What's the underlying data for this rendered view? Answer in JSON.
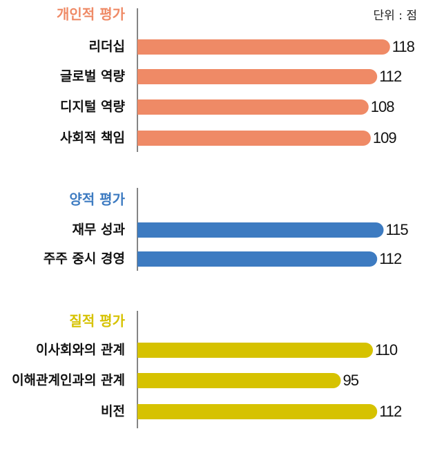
{
  "unit_label": "단위 : 점",
  "colors": {
    "personal": "#ef8a66",
    "quantitative": "#3d7bc1",
    "qualitative": "#d6c200",
    "text": "#111111",
    "axis": "#333333"
  },
  "chart_data": [
    {
      "type": "bar",
      "orientation": "horizontal",
      "title": "개인적 평가",
      "color": "#ef8a66",
      "categories": [
        "리더십",
        "글로벌 역량",
        "디지털 역량",
        "사회적 책임"
      ],
      "values": [
        118,
        112,
        108,
        109
      ]
    },
    {
      "type": "bar",
      "orientation": "horizontal",
      "title": "양적 평가",
      "color": "#3d7bc1",
      "categories": [
        "재무 성과",
        "주주 중시 경영"
      ],
      "values": [
        115,
        112
      ]
    },
    {
      "type": "bar",
      "orientation": "horizontal",
      "title": "질적 평가",
      "color": "#d6c200",
      "categories": [
        "이사회와의 관계",
        "이해관계인과의 관계",
        "비전"
      ],
      "values": [
        110,
        95,
        112
      ]
    }
  ]
}
